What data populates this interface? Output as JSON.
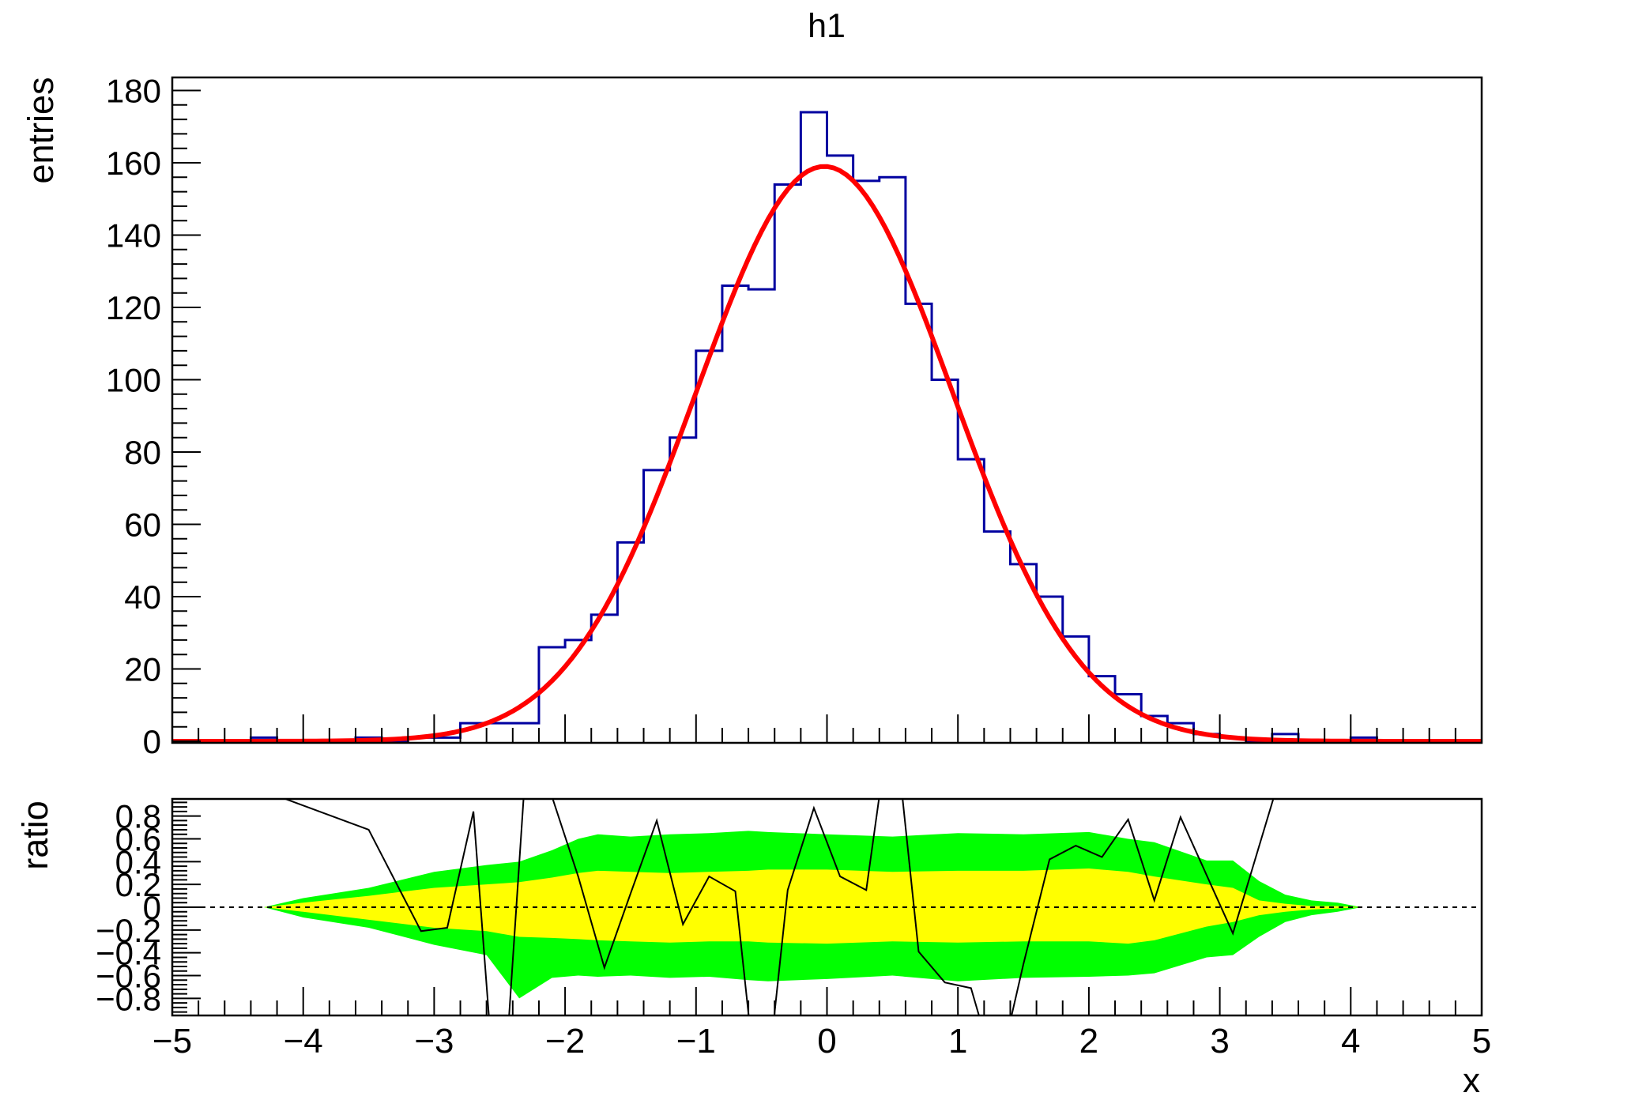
{
  "title": "h1",
  "colors": {
    "background": "#ffffff",
    "frame": "#000000",
    "text": "#000000",
    "histogram": "#0000a0",
    "fit_curve": "#ff0000",
    "band_1sigma": "#ffff00",
    "band_2sigma": "#00ff00",
    "residual_line": "#000000",
    "zero_line": "#000000"
  },
  "upper_pad": {
    "y_axis": {
      "title": "entries",
      "tick_values": [
        0,
        20,
        40,
        60,
        80,
        100,
        120,
        140,
        160,
        180
      ],
      "tick_labels": [
        "0",
        "20",
        "40",
        "60",
        "80",
        "100",
        "120",
        "140",
        "160",
        "180"
      ],
      "minor_step": 4,
      "display_max": 183.6
    }
  },
  "lower_pad": {
    "y_axis": {
      "title": "ratio",
      "tick_values": [
        0.8,
        0.6,
        0.4,
        0.2,
        0,
        -0.2,
        -0.4,
        -0.6,
        -0.8
      ],
      "tick_labels": [
        "0.8",
        "0.6",
        "0.4",
        "0.2",
        "0",
        "−0.2",
        "−0.4",
        "−0.6",
        "−0.8"
      ],
      "minor_step": 0.04,
      "range": [
        -0.95,
        0.95
      ]
    }
  },
  "x_axis": {
    "title": "x",
    "range": [
      -5,
      5
    ],
    "tick_values": [
      -5,
      -4,
      -3,
      -2,
      -1,
      0,
      1,
      2,
      3,
      4,
      5
    ],
    "tick_labels": [
      "−5",
      "−4",
      "−3",
      "−2",
      "−1",
      "0",
      "1",
      "2",
      "3",
      "4",
      "5"
    ],
    "minor_step": 0.2
  },
  "chart_data": [
    {
      "type": "bar",
      "role": "histogram-with-fit",
      "title": "h1",
      "xlabel": "x",
      "ylabel": "entries",
      "x_min": -5,
      "x_max": 5,
      "bin_width": 0.2,
      "n_bins": 50,
      "ylim": [
        0,
        183.6
      ],
      "grid": false,
      "legend": "none",
      "counts": [
        0,
        0,
        0,
        1,
        0,
        0,
        0,
        1,
        0,
        1,
        1,
        5,
        5,
        5,
        26,
        28,
        35,
        55,
        75,
        84,
        108,
        126,
        125,
        154,
        174,
        162,
        155,
        156,
        121,
        100,
        78,
        58,
        49,
        40,
        29,
        18,
        13,
        7,
        5,
        2,
        1,
        0,
        2,
        0,
        0,
        1,
        0,
        0,
        0,
        0
      ],
      "fit": {
        "shape": "gaussian",
        "amplitude": 159,
        "mean": -0.02,
        "sigma": 0.98
      }
    },
    {
      "type": "line",
      "role": "fit-residual-ratio",
      "ylabel": "ratio",
      "ylim": [
        -0.95,
        0.95
      ],
      "zero_reference": 0,
      "residual_x": [
        -4.3,
        -3.5,
        -3.1,
        -2.9,
        -2.7,
        -2.5,
        -2.3,
        -2.1,
        -1.9,
        -1.7,
        -1.5,
        -1.3,
        -1.1,
        -0.9,
        -0.7,
        -0.5,
        -0.3,
        -0.1,
        0.1,
        0.3,
        0.5,
        0.7,
        0.9,
        1.1,
        1.3,
        1.5,
        1.7,
        1.9,
        2.1,
        2.3,
        2.5,
        2.7,
        3.1,
        3.5,
        4.1
      ],
      "residual_y": [
        1.02,
        0.68,
        -0.21,
        -0.18,
        0.84,
        -2.2,
        1.25,
        0.97,
        0.27,
        -0.53,
        0.12,
        0.76,
        -0.15,
        0.27,
        0.14,
        -2.0,
        0.15,
        0.87,
        0.27,
        0.15,
        1.8,
        -0.39,
        -0.66,
        -0.71,
        -1.5,
        -0.5,
        0.42,
        0.54,
        0.44,
        0.77,
        0.06,
        0.79,
        -0.23,
        1.3,
        1.0
      ],
      "bands": {
        "x": [
          -4.3,
          -4.0,
          -3.5,
          -3.0,
          -2.6,
          -2.35,
          -2.1,
          -1.9,
          -1.75,
          -1.5,
          -1.2,
          -0.9,
          -0.6,
          -0.45,
          0.0,
          0.5,
          1.0,
          1.5,
          2.0,
          2.3,
          2.5,
          2.9,
          3.1,
          3.3,
          3.5,
          3.7,
          3.9,
          4.08
        ],
        "green_hi": [
          0.0,
          0.08,
          0.17,
          0.31,
          0.37,
          0.4,
          0.5,
          0.6,
          0.64,
          0.62,
          0.64,
          0.65,
          0.67,
          0.66,
          0.64,
          0.62,
          0.65,
          0.64,
          0.66,
          0.6,
          0.57,
          0.41,
          0.41,
          0.23,
          0.11,
          0.06,
          0.04,
          0.0
        ],
        "yellow_hi": [
          0.0,
          0.04,
          0.1,
          0.17,
          0.2,
          0.22,
          0.26,
          0.3,
          0.32,
          0.31,
          0.3,
          0.31,
          0.32,
          0.33,
          0.33,
          0.31,
          0.32,
          0.32,
          0.34,
          0.31,
          0.27,
          0.2,
          0.17,
          0.06,
          0.03,
          0.01,
          0.01,
          0.0
        ],
        "yellow_lo": [
          0.0,
          -0.04,
          -0.11,
          -0.18,
          -0.21,
          -0.26,
          -0.27,
          -0.28,
          -0.29,
          -0.3,
          -0.31,
          -0.3,
          -0.3,
          -0.31,
          -0.32,
          -0.3,
          -0.31,
          -0.3,
          -0.3,
          -0.32,
          -0.29,
          -0.17,
          -0.13,
          -0.07,
          -0.04,
          -0.02,
          -0.01,
          0.0
        ],
        "green_lo": [
          0.0,
          -0.09,
          -0.18,
          -0.33,
          -0.42,
          -0.8,
          -0.62,
          -0.6,
          -0.61,
          -0.6,
          -0.62,
          -0.61,
          -0.64,
          -0.65,
          -0.63,
          -0.6,
          -0.65,
          -0.62,
          -0.61,
          -0.6,
          -0.58,
          -0.44,
          -0.42,
          -0.26,
          -0.13,
          -0.07,
          -0.04,
          0.0
        ]
      }
    }
  ]
}
